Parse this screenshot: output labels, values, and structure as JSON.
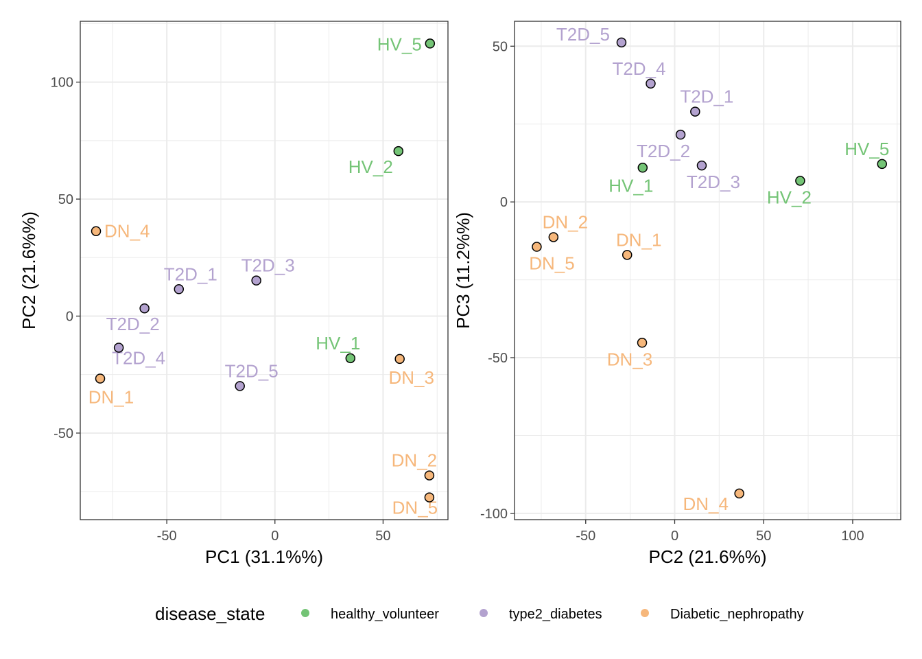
{
  "colors": {
    "healthy_volunteer": "#74c476",
    "type2_diabetes": "#b3a2cf",
    "Diabetic_nephropathy": "#f6b77b",
    "grid": "#ebebeb",
    "panel_border": "#333333"
  },
  "legend": {
    "title": "disease_state",
    "position": "bottom",
    "items": [
      {
        "key": "healthy_volunteer",
        "label": "healthy_volunteer"
      },
      {
        "key": "type2_diabetes",
        "label": "type2_diabetes"
      },
      {
        "key": "Diabetic_nephropathy",
        "label": "Diabetic_nephropathy"
      }
    ]
  },
  "chart_data": [
    {
      "type": "scatter",
      "xlabel": "PC1 (31.1%%)",
      "ylabel": "PC2 (21.6%%)",
      "xlim": [
        -90,
        80
      ],
      "ylim": [
        -87,
        126
      ],
      "xticks": [
        -50,
        0,
        50
      ],
      "yticks": [
        -50,
        0,
        50,
        100
      ],
      "grid": true,
      "points": [
        {
          "label": "HV_5",
          "group": "healthy_volunteer",
          "x": 71.7,
          "y": 116.5
        },
        {
          "label": "HV_2",
          "group": "healthy_volunteer",
          "x": 57.1,
          "y": 70.5
        },
        {
          "label": "HV_1",
          "group": "healthy_volunteer",
          "x": 34.9,
          "y": -18.0
        },
        {
          "label": "T2D_1",
          "group": "type2_diabetes",
          "x": -44.4,
          "y": 11.5
        },
        {
          "label": "T2D_3",
          "group": "type2_diabetes",
          "x": -8.6,
          "y": 15.2
        },
        {
          "label": "T2D_2",
          "group": "type2_diabetes",
          "x": -60.3,
          "y": 3.3
        },
        {
          "label": "T2D_4",
          "group": "type2_diabetes",
          "x": -72.2,
          "y": -13.5
        },
        {
          "label": "T2D_5",
          "group": "type2_diabetes",
          "x": -16.2,
          "y": -29.9
        },
        {
          "label": "DN_4",
          "group": "Diabetic_nephropathy",
          "x": -82.7,
          "y": 36.3
        },
        {
          "label": "DN_1",
          "group": "Diabetic_nephropathy",
          "x": -80.8,
          "y": -26.7
        },
        {
          "label": "DN_3",
          "group": "Diabetic_nephropathy",
          "x": 57.7,
          "y": -18.3
        },
        {
          "label": "DN_2",
          "group": "Diabetic_nephropathy",
          "x": 71.4,
          "y": -68.1
        },
        {
          "label": "DN_5",
          "group": "Diabetic_nephropathy",
          "x": 71.4,
          "y": -77.5
        }
      ]
    },
    {
      "type": "scatter",
      "xlabel": "PC2 (21.6%%)",
      "ylabel": "PC3 (11.2%%)",
      "xlim": [
        -90,
        127
      ],
      "ylim": [
        -102,
        58
      ],
      "xticks": [
        -50,
        0,
        50,
        100
      ],
      "yticks": [
        -100,
        -50,
        0,
        50
      ],
      "grid": true,
      "points": [
        {
          "label": "T2D_5",
          "group": "type2_diabetes",
          "x": -29.9,
          "y": 51.2
        },
        {
          "label": "T2D_4",
          "group": "type2_diabetes",
          "x": -13.5,
          "y": 38.0
        },
        {
          "label": "T2D_1",
          "group": "type2_diabetes",
          "x": 11.5,
          "y": 29.0
        },
        {
          "label": "T2D_2",
          "group": "type2_diabetes",
          "x": 3.3,
          "y": 21.6
        },
        {
          "label": "T2D_3",
          "group": "type2_diabetes",
          "x": 15.2,
          "y": 11.7
        },
        {
          "label": "HV_1",
          "group": "healthy_volunteer",
          "x": -18.0,
          "y": 11.0
        },
        {
          "label": "HV_5",
          "group": "healthy_volunteer",
          "x": 116.5,
          "y": 12.2
        },
        {
          "label": "HV_2",
          "group": "healthy_volunteer",
          "x": 70.5,
          "y": 6.8
        },
        {
          "label": "DN_2",
          "group": "Diabetic_nephropathy",
          "x": -68.1,
          "y": -11.3
        },
        {
          "label": "DN_5",
          "group": "Diabetic_nephropathy",
          "x": -77.5,
          "y": -14.4
        },
        {
          "label": "DN_1",
          "group": "Diabetic_nephropathy",
          "x": -26.7,
          "y": -17.0
        },
        {
          "label": "DN_3",
          "group": "Diabetic_nephropathy",
          "x": -18.3,
          "y": -45.2
        },
        {
          "label": "DN_4",
          "group": "Diabetic_nephropathy",
          "x": 36.3,
          "y": -93.6
        }
      ]
    }
  ]
}
